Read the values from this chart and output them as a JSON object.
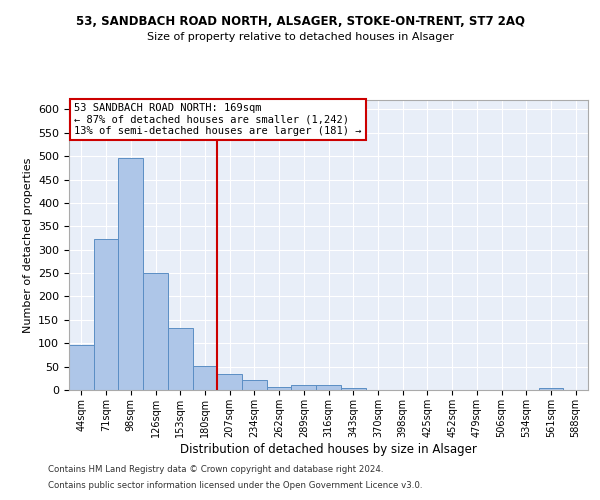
{
  "title_line1": "53, SANDBACH ROAD NORTH, ALSAGER, STOKE-ON-TRENT, ST7 2AQ",
  "title_line2": "Size of property relative to detached houses in Alsager",
  "xlabel": "Distribution of detached houses by size in Alsager",
  "ylabel": "Number of detached properties",
  "categories": [
    "44sqm",
    "71sqm",
    "98sqm",
    "126sqm",
    "153sqm",
    "180sqm",
    "207sqm",
    "234sqm",
    "262sqm",
    "289sqm",
    "316sqm",
    "343sqm",
    "370sqm",
    "398sqm",
    "425sqm",
    "452sqm",
    "479sqm",
    "506sqm",
    "534sqm",
    "561sqm",
    "588sqm"
  ],
  "values": [
    97,
    323,
    497,
    250,
    132,
    51,
    35,
    21,
    7,
    10,
    10,
    5,
    1,
    0,
    0,
    0,
    0,
    0,
    0,
    4,
    0
  ],
  "bar_color": "#aec6e8",
  "bar_edge_color": "#5b8ec4",
  "vline_x": 5.5,
  "vline_color": "#cc0000",
  "annotation_text": "53 SANDBACH ROAD NORTH: 169sqm\n← 87% of detached houses are smaller (1,242)\n13% of semi-detached houses are larger (181) →",
  "annotation_box_color": "#ffffff",
  "annotation_box_edge_color": "#cc0000",
  "ylim": [
    0,
    620
  ],
  "yticks": [
    0,
    50,
    100,
    150,
    200,
    250,
    300,
    350,
    400,
    450,
    500,
    550,
    600
  ],
  "background_color": "#e8eef8",
  "footer_line1": "Contains HM Land Registry data © Crown copyright and database right 2024.",
  "footer_line2": "Contains public sector information licensed under the Open Government Licence v3.0."
}
